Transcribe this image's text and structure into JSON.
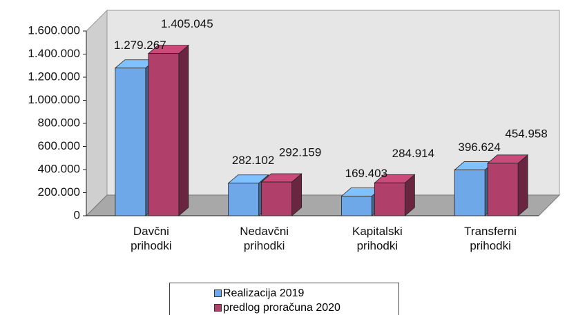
{
  "chart_data": {
    "type": "bar",
    "categories": [
      "Davčni prihodki",
      "Nedavčni prihodki",
      "Kapitalski prihodki",
      "Transferni prihodki"
    ],
    "series": [
      {
        "name": "Realizacija 2019",
        "color": "#6fa8e8",
        "values": [
          1279267,
          282102,
          169403,
          396624
        ],
        "value_labels": [
          "1.279.267",
          "282.102",
          "169.403",
          "396.624"
        ]
      },
      {
        "name": "predlog proračuna 2020",
        "color": "#b0406a",
        "values": [
          1405045,
          292159,
          284914,
          454958
        ],
        "value_labels": [
          "1.405.045",
          "292.159",
          "284.914",
          "454.958"
        ]
      }
    ],
    "ylim": [
      0,
      1600000
    ],
    "yticks": [
      0,
      {
        "value": 200000,
        "label": "200.000"
      },
      {
        "value": 400000,
        "label": "400.000"
      },
      {
        "value": 600000,
        "label": "600.000"
      },
      {
        "value": 800000,
        "label": "800.000"
      },
      {
        "value": 1000000,
        "label": "1.000.000"
      },
      {
        "value": 1200000,
        "label": "1.200.000"
      },
      {
        "value": 1400000,
        "label": "1.400.000"
      },
      {
        "value": 1600000,
        "label": "1.600.000"
      }
    ]
  }
}
